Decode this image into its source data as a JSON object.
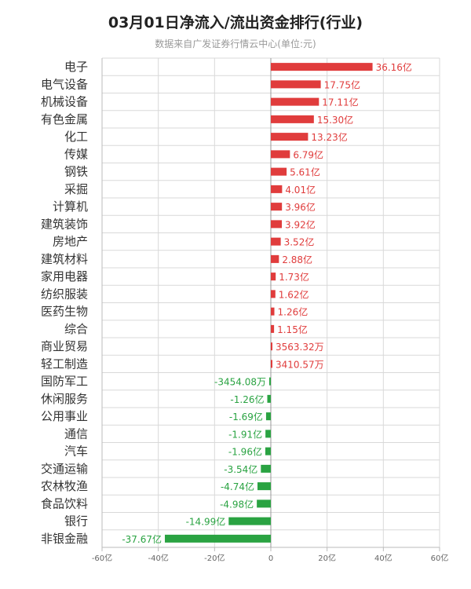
{
  "header": {
    "title": "03月01日净流入/流出资金排行(行业)",
    "subtitle": "数据来自广发证券行情云中心(单位:元)"
  },
  "colors": {
    "positive": "#e03c3c",
    "negative": "#2aa342",
    "grid": "#d9d9d9",
    "axis": "#bbbbbb"
  },
  "chart_data": {
    "type": "bar",
    "orientation": "horizontal",
    "title": "03月01日净流入/流出资金排行(行业)",
    "subtitle": "数据来自广发证券行情云中心(单位:元)",
    "xlim": [
      -60,
      60
    ],
    "x_unit": "亿",
    "x_ticks": [
      "-60亿",
      "-40亿",
      "-20亿",
      "0",
      "20亿",
      "40亿",
      "60亿"
    ],
    "grid": true,
    "categories": [
      "电子",
      "电气设备",
      "机械设备",
      "有色金属",
      "化工",
      "传媒",
      "钢铁",
      "采掘",
      "计算机",
      "建筑装饰",
      "房地产",
      "建筑材料",
      "家用电器",
      "纺织服装",
      "医药生物",
      "综合",
      "商业贸易",
      "轻工制造",
      "国防军工",
      "休闲服务",
      "公用事业",
      "通信",
      "汽车",
      "交通运输",
      "农林牧渔",
      "食品饮料",
      "银行",
      "非银金融"
    ],
    "values": [
      36.16,
      17.75,
      17.11,
      15.3,
      13.23,
      6.79,
      5.61,
      4.01,
      3.96,
      3.92,
      3.52,
      2.88,
      1.73,
      1.62,
      1.26,
      1.15,
      0.356332,
      0.341057,
      -0.345408,
      -1.26,
      -1.69,
      -1.91,
      -1.96,
      -3.54,
      -4.74,
      -4.98,
      -14.99,
      -37.67
    ],
    "labels": [
      "36.16亿",
      "17.75亿",
      "17.11亿",
      "15.30亿",
      "13.23亿",
      "6.79亿",
      "5.61亿",
      "4.01亿",
      "3.96亿",
      "3.92亿",
      "3.52亿",
      "2.88亿",
      "1.73亿",
      "1.62亿",
      "1.26亿",
      "1.15亿",
      "3563.32万",
      "3410.57万",
      "-3454.08万",
      "-1.26亿",
      "-1.69亿",
      "-1.91亿",
      "-1.96亿",
      "-3.54亿",
      "-4.74亿",
      "-4.98亿",
      "-14.99亿",
      "-37.67亿"
    ]
  }
}
